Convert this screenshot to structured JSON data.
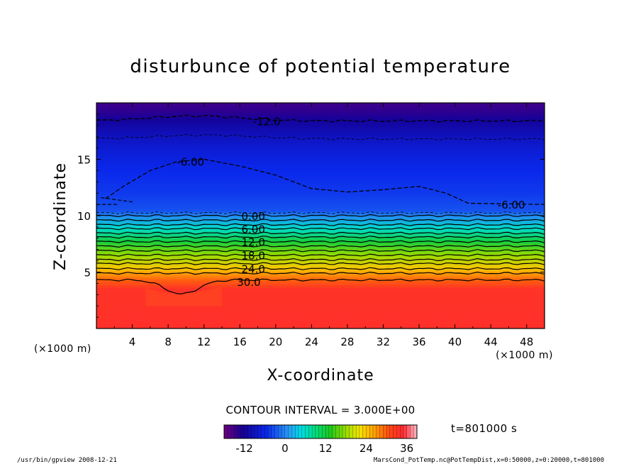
{
  "chart_data": {
    "type": "heatmap",
    "title": "disturbunce of potential temperature",
    "xlabel": "X-coordinate",
    "ylabel": "Z-coordinate",
    "x_unit": "(×1000 m)",
    "y_unit": "(×1000 m)",
    "xlim": [
      0,
      50
    ],
    "ylim": [
      0,
      20
    ],
    "x_ticks": [
      4,
      8,
      12,
      16,
      20,
      24,
      28,
      32,
      36,
      40,
      44,
      48
    ],
    "y_ticks": [
      5,
      10,
      15
    ],
    "contour_interval_label": "CONTOUR INTERVAL = 3.000E+00",
    "contour_interval": 3.0,
    "time_label": "t=801000 s",
    "color_range": [
      -18,
      39
    ],
    "colorbar_ticks": [
      -12,
      0,
      12,
      24,
      36
    ],
    "contour_labels": [
      {
        "text": "-12.0",
        "x": 19,
        "z": 18.4,
        "value": -12
      },
      {
        "text": "-6.00",
        "x": 10.5,
        "z": 14.8,
        "value": -6
      },
      {
        "text": "-6.00",
        "x": 46.3,
        "z": 11.0,
        "value": -6
      },
      {
        "text": "0.00",
        "x": 17.5,
        "z": 10.0,
        "value": 0
      },
      {
        "text": "6.00",
        "x": 17.5,
        "z": 8.85,
        "value": 6
      },
      {
        "text": "12.0",
        "x": 17.5,
        "z": 7.7,
        "value": 12
      },
      {
        "text": "18.0",
        "x": 17.5,
        "z": 6.5,
        "value": 18
      },
      {
        "text": "24.0",
        "x": 17.5,
        "z": 5.3,
        "value": 24
      },
      {
        "text": "30.0",
        "x": 17.0,
        "z": 4.15,
        "value": 30
      }
    ]
  },
  "footer": {
    "left": "/usr/bin/gpview   2008-12-21",
    "right": "MarsCond_PotTemp.nc@PotTempDist,x=0:50000,z=0:20000,t=801000"
  }
}
